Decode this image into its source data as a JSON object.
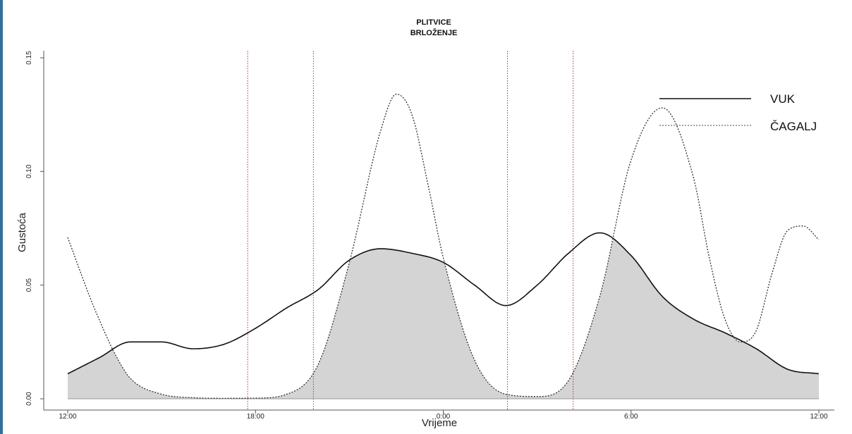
{
  "chart_data": {
    "type": "line",
    "title_line1": "PLITVICE",
    "title_line2": "BRLOŽENJE",
    "xlabel": "Vrijeme",
    "ylabel": "Gustoća",
    "x_unit": "hours since 12:00",
    "xlim": [
      0,
      24
    ],
    "ylim": [
      0,
      0.15
    ],
    "x_ticks": [
      {
        "x": 0,
        "label": "12:00"
      },
      {
        "x": 6,
        "label": "18:00"
      },
      {
        "x": 12,
        "label": "0:00"
      },
      {
        "x": 18,
        "label": "6:00"
      },
      {
        "x": 24,
        "label": "12:00"
      }
    ],
    "y_ticks": [
      {
        "y": 0,
        "label": "0.00"
      },
      {
        "y": 0.05,
        "label": "0.05"
      },
      {
        "y": 0.1,
        "label": "0.10"
      },
      {
        "y": 0.15,
        "label": "0.15"
      }
    ],
    "vertical_lines": [
      5.75,
      7.85,
      14.05,
      16.15
    ],
    "shading": "overlap region (min of both curves) shaded grey",
    "grid": false,
    "legend_position": "top-right",
    "series": [
      {
        "name": "VUK",
        "style": "solid",
        "color": "#111111",
        "x": [
          0,
          1,
          2,
          3,
          4,
          5,
          6,
          7,
          8,
          9,
          10,
          11,
          12,
          13,
          14,
          15,
          16,
          17,
          18,
          19,
          20,
          21,
          22,
          23,
          24
        ],
        "y": [
          0.011,
          0.018,
          0.025,
          0.025,
          0.022,
          0.024,
          0.031,
          0.04,
          0.048,
          0.061,
          0.066,
          0.064,
          0.06,
          0.05,
          0.041,
          0.05,
          0.064,
          0.073,
          0.063,
          0.045,
          0.035,
          0.029,
          0.022,
          0.013,
          0.011
        ]
      },
      {
        "name": "ČAGALJ",
        "style": "dotted",
        "color": "#333333",
        "x": [
          0,
          0.7,
          1,
          1.5,
          2,
          3,
          4,
          5,
          6,
          7,
          8,
          9,
          10,
          10.5,
          11,
          11.5,
          12,
          13,
          14,
          15,
          16,
          17,
          18,
          19,
          20,
          20.5,
          21,
          21.5,
          22,
          22.5,
          23,
          23.5,
          24
        ],
        "y": [
          0.071,
          0.045,
          0.035,
          0.02,
          0.009,
          0.002,
          0.0005,
          0.0002,
          0.0003,
          0.002,
          0.015,
          0.06,
          0.118,
          0.134,
          0.125,
          0.095,
          0.062,
          0.017,
          0.002,
          0.001,
          0.008,
          0.045,
          0.105,
          0.128,
          0.097,
          0.062,
          0.035,
          0.025,
          0.03,
          0.055,
          0.074,
          0.076,
          0.07
        ]
      }
    ]
  }
}
